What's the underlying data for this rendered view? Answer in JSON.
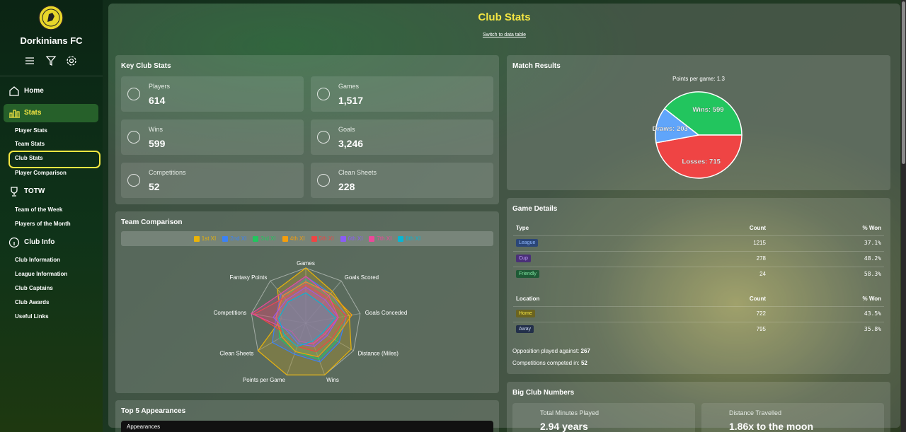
{
  "sidebar": {
    "club_name": "Dorkinians FC",
    "nav": [
      {
        "label": "Home"
      },
      {
        "label": "Stats",
        "items": [
          "Player Stats",
          "Team Stats",
          "Club Stats",
          "Player Comparison"
        ]
      },
      {
        "label": "TOTW",
        "items": [
          "Team of the Week",
          "Players of the Month"
        ]
      },
      {
        "label": "Club Info",
        "items": [
          "Club Information",
          "League Information",
          "Club Captains",
          "Club Awards",
          "Useful Links"
        ]
      }
    ]
  },
  "header": {
    "title": "Club Stats",
    "link": "Switch to data table"
  },
  "key_stats": {
    "title": "Key Club Stats",
    "tiles": [
      {
        "label": "Players",
        "value": "614"
      },
      {
        "label": "Games",
        "value": "1,517"
      },
      {
        "label": "Wins",
        "value": "599"
      },
      {
        "label": "Goals",
        "value": "3,246"
      },
      {
        "label": "Competitions",
        "value": "52"
      },
      {
        "label": "Clean Sheets",
        "value": "228"
      }
    ]
  },
  "team_comparison": {
    "title": "Team Comparison",
    "chart": {
      "type": "radar",
      "axes": [
        "Games",
        "Goals Scored",
        "Goals Conceded",
        "Distance (Miles)",
        "Wins",
        "Points per Game",
        "Clean Sheets",
        "Competitions",
        "Fantasy Points"
      ],
      "rlim": [
        0,
        100
      ],
      "series": [
        {
          "name": "1st XI",
          "color": "#eab308",
          "values": [
            100,
            75,
            80,
            95,
            100,
            100,
            100,
            45,
            80
          ]
        },
        {
          "name": "2nd XI",
          "color": "#3b82f6",
          "values": [
            85,
            70,
            75,
            70,
            75,
            60,
            70,
            55,
            70
          ]
        },
        {
          "name": "3rd XI",
          "color": "#22c55e",
          "values": [
            80,
            65,
            70,
            65,
            70,
            55,
            55,
            50,
            60
          ]
        },
        {
          "name": "4th XI",
          "color": "#f59e0b",
          "values": [
            75,
            70,
            85,
            60,
            65,
            55,
            50,
            55,
            65
          ]
        },
        {
          "name": "5th XI",
          "color": "#ef4444",
          "values": [
            70,
            60,
            75,
            55,
            55,
            45,
            40,
            95,
            60
          ]
        },
        {
          "name": "6th XI",
          "color": "#8b5cf6",
          "values": [
            65,
            55,
            60,
            45,
            45,
            40,
            35,
            60,
            55
          ]
        },
        {
          "name": "7th XI",
          "color": "#ec4899",
          "values": [
            85,
            65,
            60,
            40,
            40,
            35,
            30,
            100,
            70
          ]
        },
        {
          "name": "8th XI",
          "color": "#06b6d4",
          "values": [
            55,
            45,
            55,
            35,
            35,
            45,
            45,
            50,
            50
          ]
        }
      ]
    }
  },
  "top_appearances": {
    "title": "Top 5 Appearances",
    "select": "Appearances"
  },
  "match_results": {
    "title": "Match Results",
    "subtitle": "Points per game: 1.3",
    "chart": {
      "type": "pie",
      "values": [
        599,
        715,
        203
      ],
      "value_labels": [
        "Wins: 599",
        "Losses: 715",
        "Draws: 203"
      ],
      "colors": [
        "#22c55e",
        "#ef4444",
        "#60a5fa"
      ]
    }
  },
  "game_details": {
    "title": "Game Details",
    "type_table": {
      "header": [
        "Type",
        "Count",
        "% Won"
      ],
      "rows": [
        [
          "League",
          "1215",
          "37.1%"
        ],
        [
          "Cup",
          "278",
          "48.2%"
        ],
        [
          "Friendly",
          "24",
          "58.3%"
        ]
      ]
    },
    "location_table": {
      "header": [
        "Location",
        "Count",
        "% Won"
      ],
      "rows": [
        [
          "Home",
          "722",
          "43.5%"
        ],
        [
          "Away",
          "795",
          "35.8%"
        ]
      ]
    },
    "facts": [
      {
        "label": "Opposition played against:",
        "value": "267"
      },
      {
        "label": "Competitions competed in:",
        "value": "52"
      }
    ]
  },
  "big_numbers": {
    "title": "Big Club Numbers",
    "tiles": [
      {
        "label": "Total Minutes Played",
        "value": "2.94 years"
      },
      {
        "label": "Distance Travelled",
        "value": "1.86x to the moon"
      }
    ]
  }
}
